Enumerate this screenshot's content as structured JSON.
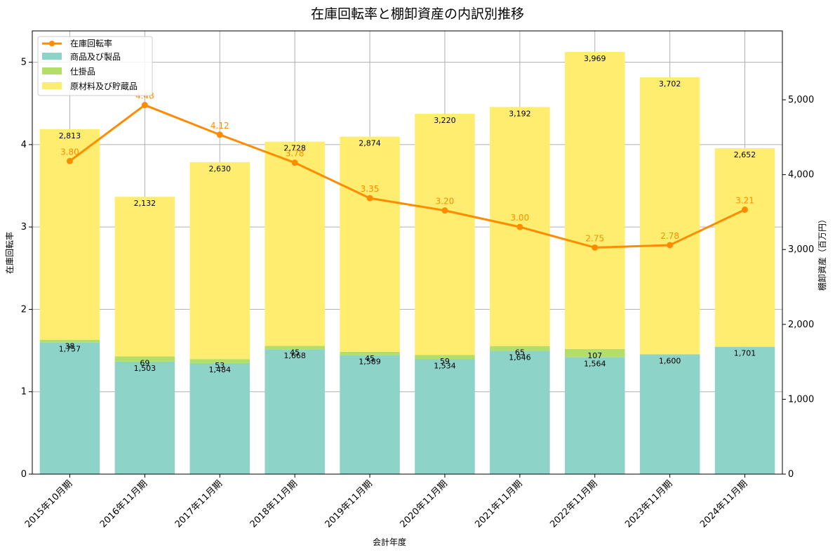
{
  "chart_data": {
    "type": "bar",
    "title": "在庫回転率と棚卸資産の内訳別推移",
    "xlabel": "会計年度",
    "ylabel_left": "在庫回転率",
    "ylabel_right": "棚卸資産（百万円）",
    "categories": [
      "2015年10月期",
      "2016年11月期",
      "2017年11月期",
      "2018年11月期",
      "2019年11月期",
      "2020年11月期",
      "2021年11月期",
      "2022年11月期",
      "2023年11月期",
      "2024年11月期"
    ],
    "stacked": true,
    "bar_axis": "right",
    "ylim_left": [
      0,
      5.38
    ],
    "ylim_right": [
      0,
      5920
    ],
    "yticks_left": [
      0,
      1,
      2,
      3,
      4,
      5
    ],
    "yticks_left_labels": [
      "0",
      "1",
      "2",
      "3",
      "4",
      "5"
    ],
    "yticks_right": [
      0,
      1000,
      2000,
      3000,
      4000,
      5000
    ],
    "yticks_right_labels": [
      "0",
      "1,000",
      "2,000",
      "3,000",
      "4,000",
      "5,000"
    ],
    "grid": true,
    "legend_position": "top-left",
    "series": [
      {
        "name": "商品及び製品",
        "kind": "bar",
        "color": "#8dd3c7",
        "values": [
          1757,
          1503,
          1484,
          1668,
          1589,
          1534,
          1646,
          1564,
          1600,
          1701
        ],
        "labels": [
          "1,757",
          "1,503",
          "1,484",
          "1,668",
          "1,589",
          "1,534",
          "1,646",
          "1,564",
          "1,600",
          "1,701"
        ]
      },
      {
        "name": "仕掛品",
        "kind": "bar",
        "color": "#b3de69",
        "values": [
          38,
          69,
          53,
          45,
          45,
          59,
          65,
          107,
          0,
          0
        ],
        "labels": [
          "38",
          "69",
          "53",
          "45",
          "45",
          "59",
          "65",
          "107",
          "",
          ""
        ]
      },
      {
        "name": "原材料及び貯蔵品",
        "kind": "bar",
        "color": "#ffed6f",
        "values": [
          2813,
          2132,
          2630,
          2728,
          2874,
          3220,
          3192,
          3969,
          3702,
          2652
        ],
        "labels": [
          "2,813",
          "2,132",
          "2,630",
          "2,728",
          "2,874",
          "3,220",
          "3,192",
          "3,969",
          "3,702",
          "2,652"
        ]
      },
      {
        "name": "在庫回転率",
        "kind": "line",
        "axis": "left",
        "color": "#ff8c00",
        "values": [
          3.8,
          4.48,
          4.12,
          3.78,
          3.35,
          3.2,
          3.0,
          2.75,
          2.78,
          3.21
        ],
        "labels": [
          "3.80",
          "4.48",
          "4.12",
          "3.78",
          "3.35",
          "3.20",
          "3.00",
          "2.75",
          "2.78",
          "3.21"
        ]
      }
    ]
  }
}
